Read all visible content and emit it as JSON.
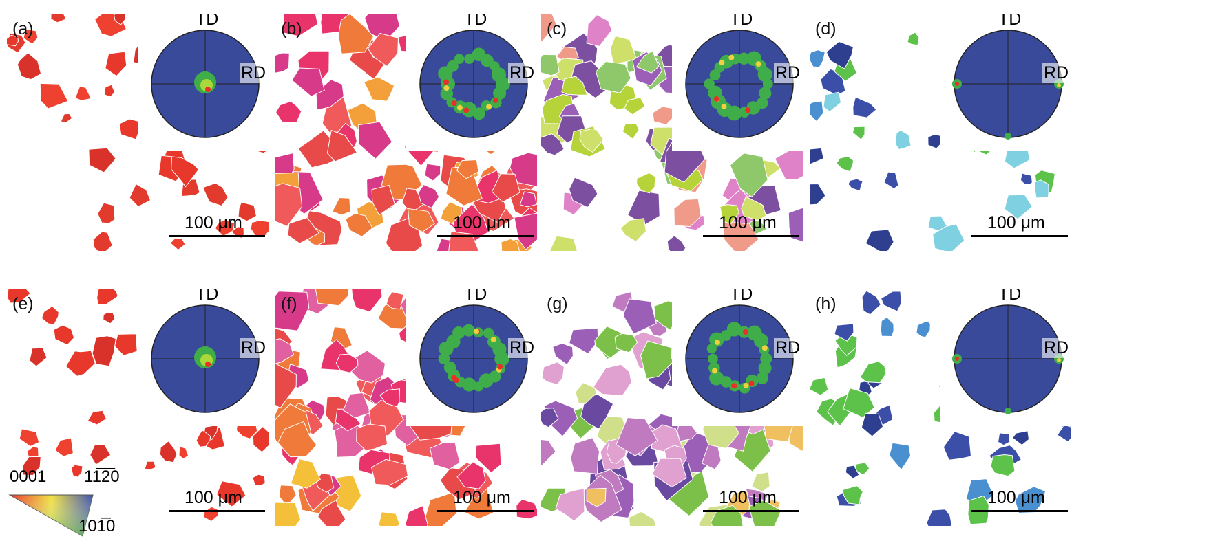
{
  "figure": {
    "axis_labels": {
      "td": "TD",
      "rd": "RD"
    },
    "panels": [
      {
        "label": "(a)",
        "scale": "100 μm",
        "palette": [
          "#e8372b",
          "#e33a2e",
          "#ee4130",
          "#d9322a"
        ],
        "pole": "center"
      },
      {
        "label": "(b)",
        "scale": "100 μm",
        "palette": [
          "#e8336b",
          "#f07a3a",
          "#e84a4a",
          "#f4a03a",
          "#d83a8a",
          "#f05a5a"
        ],
        "pole": "ring"
      },
      {
        "label": "(c)",
        "scale": "100 μm",
        "palette": [
          "#9b5fb8",
          "#b6d33a",
          "#7c4fa0",
          "#cfe06a",
          "#e082c8",
          "#8fc86a",
          "#f09a8a"
        ],
        "pole": "ring"
      },
      {
        "label": "(d)",
        "scale": "100 μm",
        "palette": [
          "#3b4fa8",
          "#4a8fd0",
          "#5cc24a",
          "#2f3f90",
          "#7fd0e0"
        ],
        "pole": "edge"
      },
      {
        "label": "(e)",
        "scale": "100 μm",
        "palette": [
          "#e8372b",
          "#ee4130",
          "#d9322a"
        ],
        "pole": "center"
      },
      {
        "label": "(f)",
        "scale": "100 μm",
        "palette": [
          "#e8336b",
          "#f07a3a",
          "#e84a4a",
          "#f4c03a",
          "#d83a8a",
          "#f05a5a",
          "#e060a0"
        ],
        "pole": "ring"
      },
      {
        "label": "(g)",
        "scale": "100 μm",
        "palette": [
          "#9b5fb8",
          "#6a4aa0",
          "#c07ac0",
          "#f0c060",
          "#e0a0d0",
          "#7cc04a",
          "#d0e08a"
        ],
        "pole": "ring"
      },
      {
        "label": "(h)",
        "scale": "100 μm",
        "palette": [
          "#3b4fa8",
          "#4a8fd0",
          "#5cc24a",
          "#2f3f90"
        ],
        "pole": "edge"
      }
    ],
    "legend": {
      "corner_0001": "0001",
      "corner_1120": "11̅2̅0",
      "corner_1010": "101̅0"
    }
  }
}
